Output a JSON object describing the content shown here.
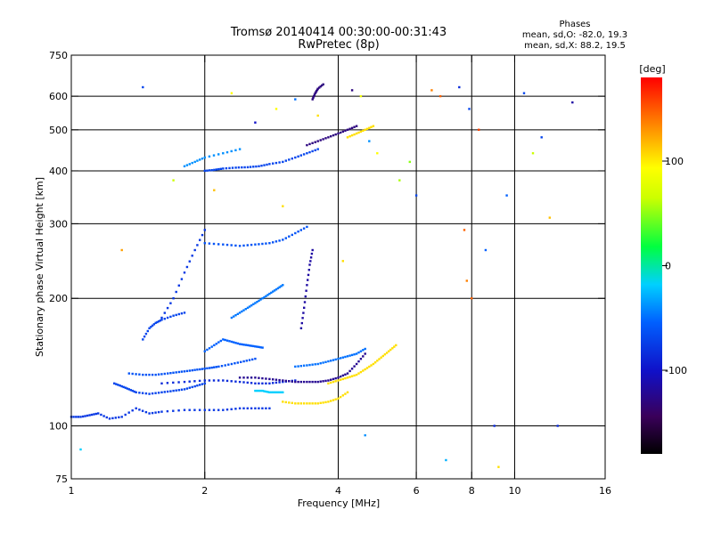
{
  "chart_data": {
    "type": "scatter",
    "title": "Tromsø 20140414 00:30:00-00:31:43",
    "subtitle": "RwPretec (8p)",
    "xlabel": "Frequency [MHz]",
    "ylabel": "Stationary phase Virtual Height [km]",
    "x_scale": "log",
    "y_scale": "log",
    "xlim": [
      1,
      16
    ],
    "ylim": [
      75,
      750
    ],
    "x_ticks": [
      1,
      2,
      4,
      6,
      8,
      10,
      16
    ],
    "y_ticks": [
      75,
      100,
      200,
      300,
      400,
      500,
      600,
      750
    ],
    "grid_x": [
      2,
      4,
      6,
      8,
      10
    ],
    "grid_y": [
      100,
      200,
      300,
      400,
      500,
      600
    ],
    "legend": {
      "title": "Phases",
      "lines": [
        "mean, sd,O: -82.0, 19.3",
        "mean, sd,X: 88.2, 19.5"
      ]
    },
    "colorbar": {
      "label": "[deg]",
      "range": [
        -180,
        180
      ],
      "ticks": [
        100,
        0,
        -100
      ]
    },
    "series": [
      {
        "traces": [
          {
            "x": [
              1.0,
              1.05,
              1.1,
              1.15,
              1.22,
              1.3,
              1.4,
              1.5,
              1.6,
              1.8,
              2.0,
              2.2,
              2.4,
              2.6,
              2.8
            ],
            "y": [
              105,
              105,
              106,
              107,
              104,
              105,
              110,
              107,
              108,
              109,
              109,
              109,
              110,
              110,
              110
            ],
            "phase": -105
          },
          {
            "x": [
              1.25,
              1.3,
              1.35,
              1.4,
              1.5,
              1.6,
              1.7,
              1.8,
              1.9,
              2.0
            ],
            "y": [
              126,
              124,
              122,
              120,
              119,
              120,
              121,
              122,
              124,
              126
            ],
            "phase": -100
          },
          {
            "x": [
              1.35,
              1.45,
              1.55,
              1.65,
              1.75,
              1.85,
              1.95,
              2.05,
              2.15,
              2.3,
              2.45,
              2.6
            ],
            "y": [
              133,
              132,
              132,
              133,
              134,
              135,
              136,
              137,
              138,
              140,
              142,
              144
            ],
            "phase": -95
          },
          {
            "x": [
              1.6,
              1.8,
              2.0,
              2.2,
              2.4,
              2.6,
              2.8,
              3.0,
              3.2
            ],
            "y": [
              126,
              127,
              128,
              128,
              127,
              126,
              126,
              127,
              128
            ],
            "phase": -110
          },
          {
            "x": [
              2.4,
              2.6,
              2.8,
              3.0,
              3.2,
              3.4,
              3.6,
              3.8,
              4.0,
              4.2,
              4.4,
              4.6
            ],
            "y": [
              130,
              130,
              129,
              128,
              127,
              127,
              127,
              128,
              130,
              133,
              140,
              148
            ],
            "phase": -135
          },
          {
            "x": [
              2.6,
              2.7,
              2.8,
              2.9,
              3.0
            ],
            "y": [
              121,
              121,
              120,
              120,
              120
            ],
            "phase": -20
          },
          {
            "x": [
              3.0,
              3.2,
              3.4,
              3.6,
              3.8,
              4.0,
              4.2
            ],
            "y": [
              114,
              113,
              113,
              113,
              114,
              116,
              120
            ],
            "phase": 110
          },
          {
            "x": [
              3.8,
              4.0,
              4.2,
              4.4,
              4.6,
              4.8,
              5.0,
              5.2,
              5.4
            ],
            "y": [
              126,
              128,
              130,
              132,
              136,
              140,
              145,
              150,
              155
            ],
            "phase": 110
          },
          {
            "x": [
              3.2,
              3.4,
              3.6,
              3.8,
              4.0,
              4.2,
              4.4,
              4.6
            ],
            "y": [
              138,
              139,
              140,
              142,
              144,
              146,
              148,
              152
            ],
            "phase": -80
          },
          {
            "x": [
              2.0,
              2.1,
              2.2,
              2.35,
              2.5,
              2.65,
              2.8,
              3.0,
              3.2,
              3.4,
              3.6
            ],
            "y": [
              400,
              402,
              405,
              407,
              408,
              410,
              415,
              420,
              430,
              440,
              450
            ],
            "phase": -100
          },
          {
            "x": [
              3.4,
              3.6,
              3.8,
              4.0,
              4.2,
              4.4
            ],
            "y": [
              460,
              470,
              480,
              490,
              500,
              510
            ],
            "phase": -140
          },
          {
            "x": [
              4.2,
              4.4,
              4.6,
              4.8
            ],
            "y": [
              480,
              490,
              500,
              510
            ],
            "phase": 110
          },
          {
            "x": [
              2.0,
              2.2,
              2.4,
              2.6,
              2.8,
              3.0,
              3.2,
              3.4
            ],
            "y": [
              270,
              268,
              266,
              268,
              270,
              275,
              285,
              295
            ],
            "phase": -95
          },
          {
            "x": [
              1.6,
              1.7,
              1.8,
              1.9,
              2.0
            ],
            "y": [
              180,
              200,
              230,
              260,
              290
            ],
            "phase": -105
          },
          {
            "x": [
              3.3,
              3.35,
              3.4,
              3.45,
              3.5
            ],
            "y": [
              170,
              190,
              215,
              240,
              260
            ],
            "phase": -130
          },
          {
            "x": [
              3.5,
              3.55,
              3.6,
              3.7
            ],
            "y": [
              590,
              610,
              625,
              640
            ],
            "phase": -140
          },
          {
            "x": [
              2.3,
              2.4,
              2.5,
              2.6,
              2.7,
              2.8,
              2.9,
              3.0
            ],
            "y": [
              180,
              185,
              190,
              195,
              200,
              205,
              210,
              215
            ],
            "phase": -75
          },
          {
            "x": [
              2.0,
              2.1,
              2.2,
              2.3,
              2.4,
              2.5,
              2.6,
              2.7
            ],
            "y": [
              150,
              155,
              160,
              158,
              156,
              155,
              154,
              153
            ],
            "phase": -90
          },
          {
            "x": [
              1.8,
              1.9,
              2.0,
              2.2,
              2.4
            ],
            "y": [
              410,
              420,
              430,
              440,
              450
            ],
            "phase": -60
          },
          {
            "x": [
              1.45,
              1.5,
              1.55,
              1.6,
              1.7,
              1.8
            ],
            "y": [
              160,
              170,
              175,
              178,
              182,
              185
            ],
            "phase": -100
          }
        ],
        "scattered": {
          "x": [
            1.45,
            1.7,
            2.3,
            2.6,
            2.9,
            3.2,
            3.6,
            4.3,
            4.5,
            4.7,
            4.9,
            5.5,
            6.0,
            6.5,
            6.8,
            7.5,
            7.7,
            7.8,
            8.0,
            8.3,
            8.6,
            9.0,
            9.6,
            10.5,
            11.5,
            12.0,
            12.5,
            13.5,
            1.05,
            1.3,
            2.1,
            3.0,
            4.1,
            4.6,
            5.8,
            7.0,
            7.9,
            9.2,
            11.0
          ],
          "y": [
            630,
            380,
            610,
            520,
            560,
            590,
            540,
            620,
            600,
            470,
            440,
            380,
            350,
            620,
            600,
            630,
            290,
            220,
            200,
            500,
            260,
            100,
            350,
            610,
            480,
            310,
            100,
            580,
            88,
            260,
            360,
            330,
            245,
            95,
            420,
            83,
            560,
            80,
            440
          ],
          "phase": [
            -100,
            60,
            100,
            -120,
            100,
            -80,
            110,
            -140,
            90,
            -60,
            100,
            50,
            -100,
            140,
            150,
            -110,
            150,
            140,
            150,
            160,
            -90,
            -110,
            -90,
            -100,
            -100,
            120,
            -110,
            -130,
            -20,
            130,
            120,
            110,
            110,
            -60,
            40,
            -40,
            -100,
            110,
            60
          ]
        }
      }
    ]
  }
}
